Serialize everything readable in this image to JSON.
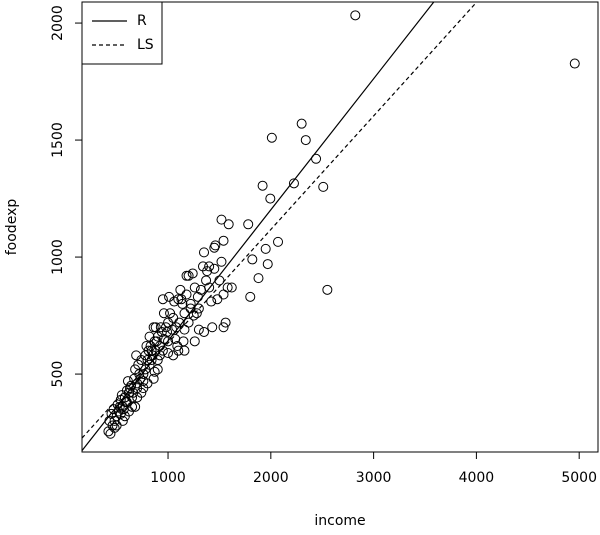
{
  "chart_data": {
    "type": "scatter",
    "x_label": "income",
    "y_label": "foodexp",
    "x": [
      420,
      440,
      460,
      430,
      450,
      480,
      500,
      470,
      520,
      510,
      540,
      560,
      550,
      580,
      600,
      590,
      620,
      640,
      610,
      650,
      670,
      700,
      680,
      720,
      710,
      740,
      690,
      760,
      780,
      800,
      810,
      830,
      850,
      820,
      870,
      880,
      900,
      860,
      920,
      940,
      960,
      980,
      950,
      1000,
      1020,
      1050,
      1060,
      1080,
      1100,
      1120,
      1140,
      1160,
      1180,
      1200,
      1220,
      1240,
      1260,
      1280,
      1300,
      1320,
      1340,
      1380,
      1400,
      1420,
      1480,
      1500,
      1520,
      1540,
      1100,
      1150,
      1050,
      1000,
      900,
      860,
      800,
      760,
      700,
      650,
      620,
      580,
      560,
      540,
      500,
      480,
      900,
      950,
      1000,
      1200,
      1250,
      1300,
      1350,
      1400,
      1450,
      1180,
      1130,
      1070,
      990,
      930,
      890,
      840,
      790,
      730,
      660,
      630,
      600,
      570,
      530,
      700,
      760,
      820,
      880,
      960,
      1040,
      1110,
      1160,
      1220,
      1290,
      1370,
      1450,
      1010,
      870,
      920,
      740,
      680,
      780,
      840,
      1090,
      1160,
      1260,
      2822,
      4957,
      2300,
      2010,
      2340,
      2440,
      2225,
      1920,
      2510,
      1995,
      2070,
      2550,
      1520,
      1590,
      1780,
      1460,
      1540,
      1350,
      1970,
      1950,
      1880,
      1820,
      1800,
      1580,
      1620,
      1560,
      1430,
      1540
    ],
    "y": [
      255,
      245,
      280,
      300,
      330,
      300,
      320,
      350,
      340,
      370,
      390,
      360,
      410,
      400,
      430,
      380,
      420,
      450,
      470,
      400,
      480,
      460,
      520,
      500,
      540,
      560,
      580,
      500,
      520,
      560,
      600,
      620,
      580,
      540,
      640,
      600,
      660,
      700,
      620,
      680,
      650,
      700,
      820,
      720,
      760,
      740,
      810,
      700,
      820,
      860,
      800,
      760,
      840,
      920,
      800,
      930,
      870,
      760,
      690,
      860,
      960,
      940,
      870,
      810,
      820,
      900,
      980,
      840,
      600,
      640,
      580,
      590,
      520,
      480,
      460,
      440,
      400,
      360,
      340,
      320,
      300,
      330,
      280,
      270,
      560,
      600,
      640,
      720,
      750,
      780,
      680,
      960,
      1040,
      920,
      820,
      650,
      680,
      700,
      640,
      560,
      620,
      480,
      420,
      440,
      380,
      350,
      360,
      440,
      470,
      660,
      700,
      760,
      690,
      720,
      690,
      780,
      830,
      900,
      950,
      830,
      510,
      580,
      420,
      360,
      580,
      600,
      620,
      600,
      640,
      2033,
      1827,
      1570,
      1510,
      1500,
      1420,
      1315,
      1305,
      1300,
      1250,
      1065,
      860,
      1160,
      1140,
      1140,
      1050,
      1070,
      1020,
      970,
      1035,
      910,
      990,
      830,
      870,
      870,
      720,
      700,
      700
    ],
    "xlim": [
      163,
      5183
    ],
    "ylim": [
      167,
      2090
    ],
    "xticks": [
      1000,
      2000,
      3000,
      4000,
      5000
    ],
    "yticks": [
      500,
      1000,
      1500,
      2000
    ],
    "color": "#000000",
    "legend_position": "top-left",
    "lines": [
      {
        "name": "R",
        "intercept": 81.48,
        "slope": 0.5602,
        "dash": false
      },
      {
        "name": "LS",
        "intercept": 147.48,
        "slope": 0.4852,
        "dash": true
      }
    ]
  }
}
